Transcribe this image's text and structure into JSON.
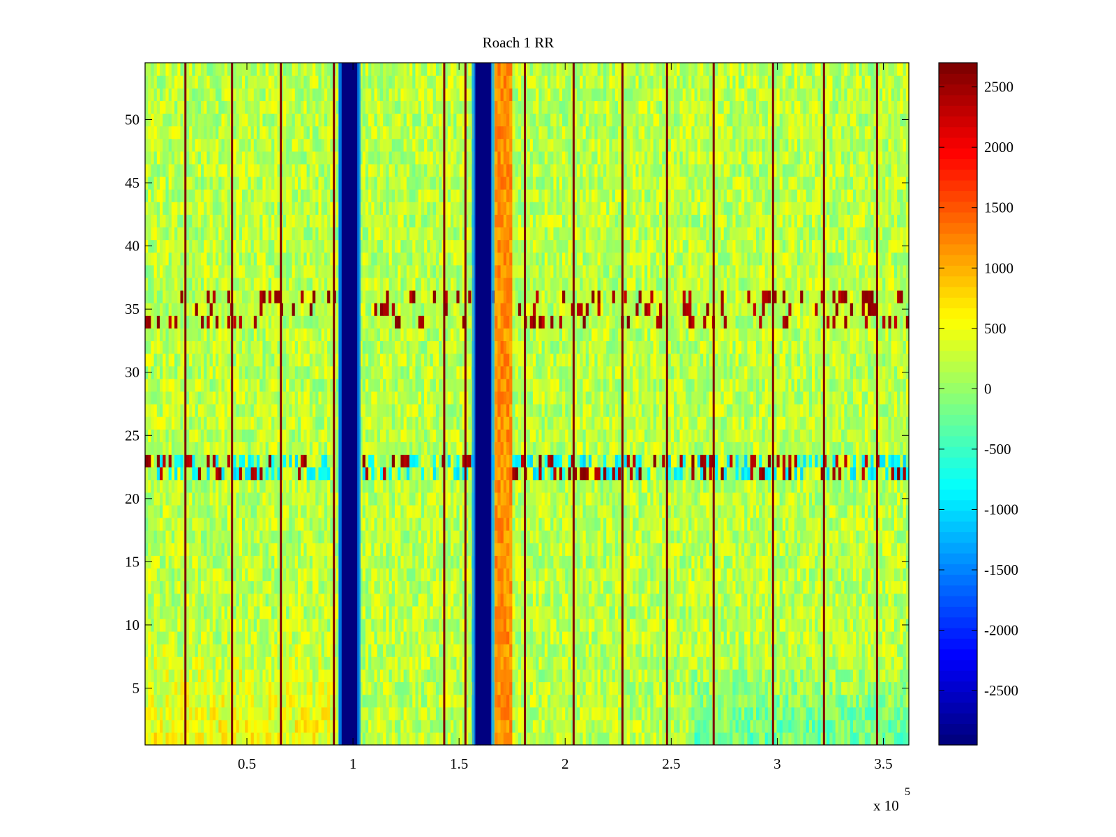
{
  "chart_data": {
    "type": "heatmap",
    "title": "Roach 1 RR",
    "xlabel": "",
    "ylabel": "",
    "x_exponent_base": "x 10",
    "x_exponent_power": "5",
    "xlim": [
      0.02,
      3.62
    ],
    "ylim": [
      0.5,
      54.5
    ],
    "x_ticks": [
      0.5,
      1,
      1.5,
      2,
      2.5,
      3,
      3.5
    ],
    "x_tick_labels": [
      "0.5",
      "1",
      "1.5",
      "2",
      "2.5",
      "3",
      "3.5"
    ],
    "y_ticks": [
      5,
      10,
      15,
      20,
      25,
      30,
      35,
      40,
      45,
      50
    ],
    "y_tick_labels": [
      "5",
      "10",
      "15",
      "20",
      "25",
      "30",
      "35",
      "40",
      "45",
      "50"
    ],
    "colormap": "jet",
    "clim": [
      -2950,
      2700
    ],
    "colorbar_ticks": [
      2500,
      2000,
      1500,
      1000,
      500,
      0,
      -500,
      -1000,
      -1500,
      -2000,
      -2500
    ],
    "colorbar_tick_labels": [
      "2500",
      "2000",
      "1500",
      "1000",
      "500",
      "0",
      "-500",
      "-1000",
      "-1500",
      "-2000",
      "-2500"
    ],
    "background_level": 200,
    "low_columns": [
      {
        "x_start": 0.94,
        "x_end": 1.03,
        "value": -2950
      },
      {
        "x_start": 1.57,
        "x_end": 1.66,
        "value": -2950
      }
    ],
    "warm_band": {
      "x_start": 1.67,
      "x_end": 1.75,
      "value": 1200
    },
    "spike_columns_x": [
      0.21,
      0.43,
      0.66,
      0.91,
      1.43,
      1.53,
      1.81,
      2.04,
      2.27,
      2.48,
      2.7,
      2.98,
      3.22,
      3.47
    ],
    "spike_value": 2700,
    "noisy_rows": [
      {
        "y_start": 21.5,
        "y_end": 23.5,
        "description_value": -900
      },
      {
        "y_start": 33.5,
        "y_end": 36.5,
        "description_value": 200
      }
    ]
  }
}
